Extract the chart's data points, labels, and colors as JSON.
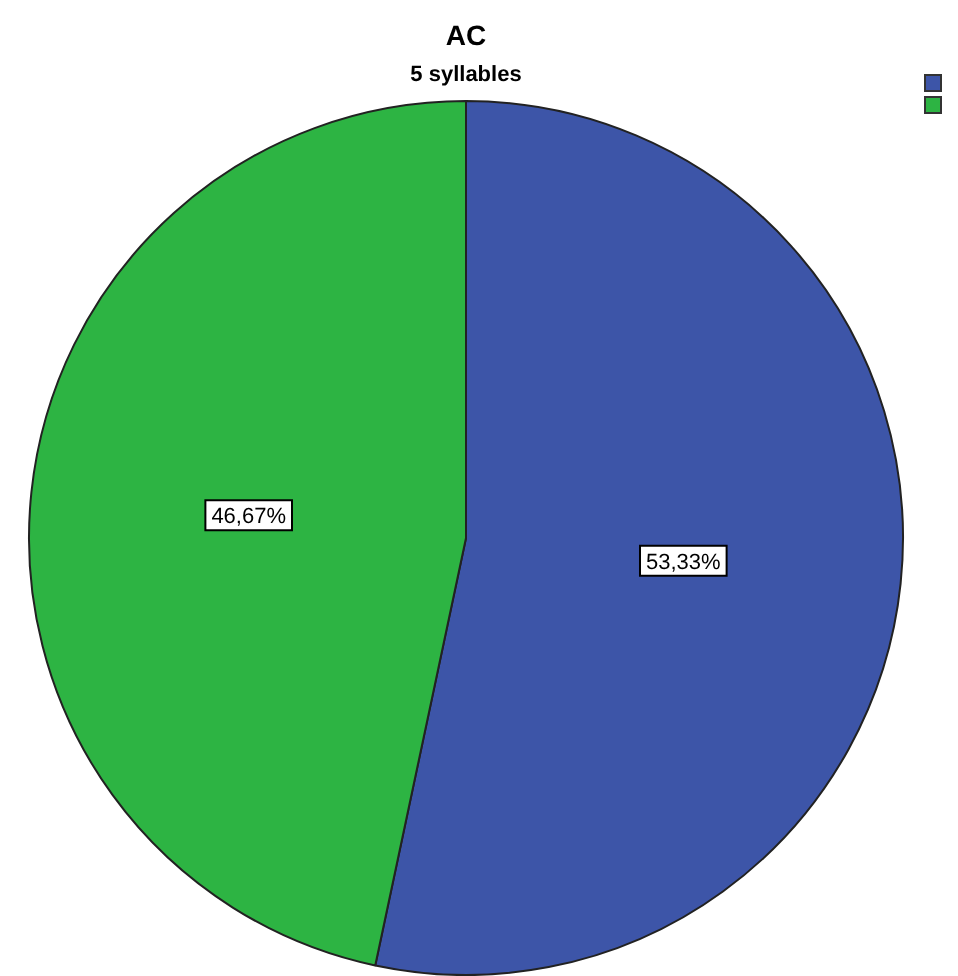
{
  "chart_data": {
    "type": "pie",
    "title": "AC",
    "subtitle": "5 syllables",
    "categories": [
      null,
      null
    ],
    "values": [
      53.33,
      46.67
    ],
    "colors": [
      "#3d55a8",
      "#2db443"
    ],
    "value_labels": [
      "53,33%",
      "46,67%"
    ]
  }
}
